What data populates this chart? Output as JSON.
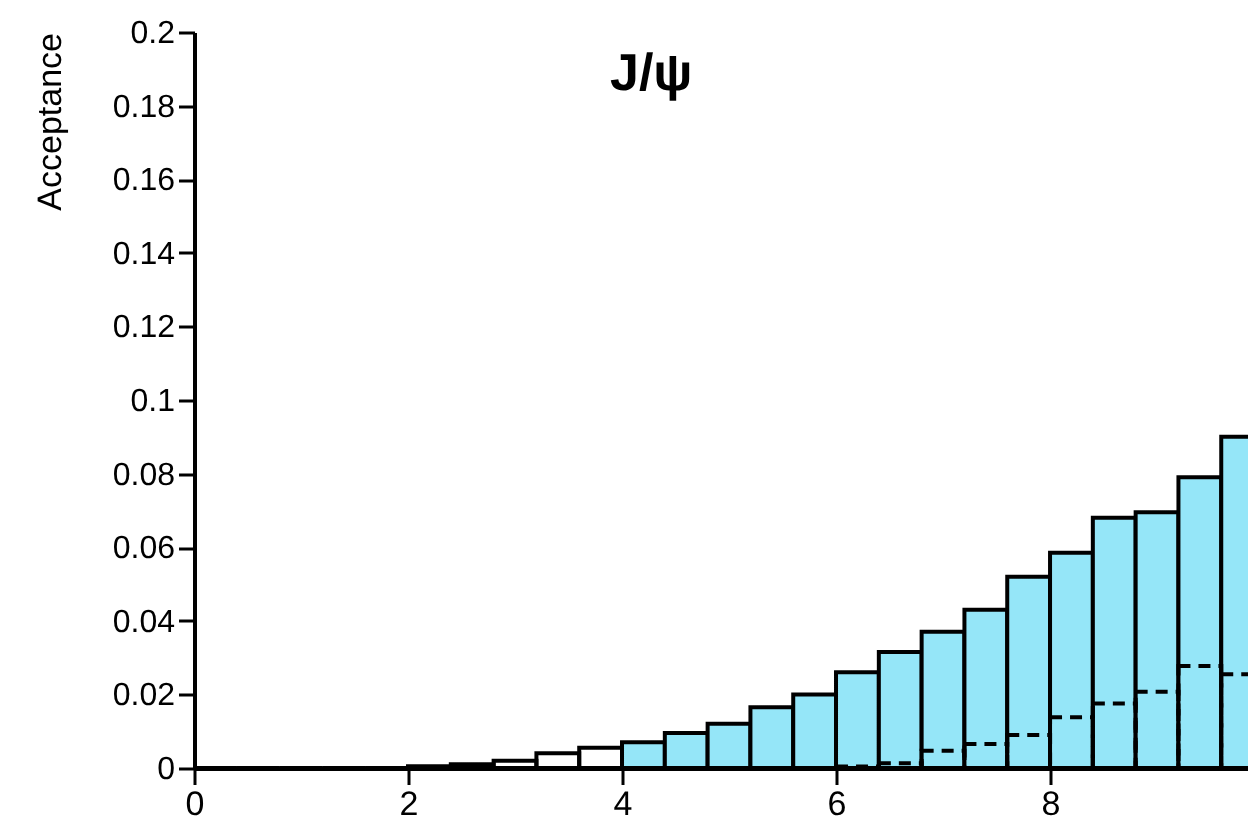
{
  "chart_data": {
    "type": "histogram",
    "title": "J/ψ",
    "ylabel": "Acceptance",
    "bins": [
      0,
      0.4,
      0.8,
      1.2,
      1.6,
      2.0,
      2.4,
      2.8,
      3.2,
      3.6,
      4.0,
      4.4,
      4.8,
      5.2,
      5.6,
      6.0,
      6.4,
      6.8,
      7.2,
      7.6,
      8.0,
      8.4,
      8.8,
      9.2,
      9.6,
      10.0
    ],
    "series": [
      {
        "color": "#000000",
        "line_style": "solid",
        "colors": [
          null,
          null,
          null,
          null,
          null,
          null,
          null,
          null,
          null,
          null,
          "#95e6f8",
          "#95e6f8",
          "#95e6f8",
          "#95e6f8",
          "#95e6f8",
          "#95e6f8",
          "#95e6f8",
          "#95e6f8",
          "#95e6f8",
          "#95e6f8",
          "#95e6f8",
          "#95e6f8",
          "#95e6f8",
          "#95e6f8",
          "#95e6f8"
        ],
        "values": [
          0,
          0,
          0,
          0,
          0,
          0.0005,
          0.001,
          0.002,
          0.004,
          0.0055,
          0.007,
          0.0095,
          0.012,
          0.0165,
          0.02,
          0.026,
          0.0315,
          0.037,
          0.043,
          0.052,
          0.0585,
          0.068,
          0.0695,
          0.079,
          0.09
        ]
      },
      {
        "color": "#000000",
        "line_style": "dashed",
        "values": [
          0,
          0,
          0,
          0,
          0,
          0,
          0,
          0,
          0,
          0,
          0,
          0,
          0,
          0,
          0,
          0.0004,
          0.0013,
          0.0047,
          0.0065,
          0.009,
          0.0138,
          0.0175,
          0.0207,
          0.0277,
          0.0255
        ]
      }
    ],
    "xlim": [
      0,
      9.85
    ],
    "xticks": [
      0,
      2,
      4,
      6,
      8
    ],
    "ylim": [
      0,
      0.2
    ],
    "yticks": [
      0,
      0.02,
      0.04,
      0.06,
      0.08,
      0.1,
      0.12,
      0.14,
      0.16,
      0.18,
      0.2
    ],
    "grid": false
  }
}
